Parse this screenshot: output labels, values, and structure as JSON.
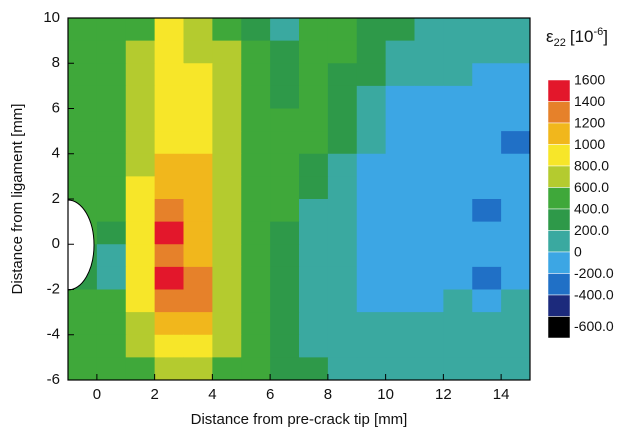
{
  "chart_data": {
    "type": "contour",
    "xlabel": "Distance from pre-crack tip [mm]",
    "ylabel": "Distance from ligament [mm]",
    "xlim": [
      -1,
      15
    ],
    "ylim": [
      -6,
      10
    ],
    "xticks": [
      0,
      2,
      4,
      6,
      8,
      10,
      12,
      14
    ],
    "yticks": [
      -6,
      -4,
      -2,
      0,
      2,
      4,
      6,
      8,
      10
    ],
    "x": [
      -0.5,
      0.5,
      1.5,
      2.5,
      3.5,
      4.5,
      5.5,
      6.5,
      7.5,
      8.5,
      9.5,
      10.5,
      11.5,
      12.5,
      13.5,
      14.5
    ],
    "y": [
      9.5,
      8.5,
      7.5,
      6.5,
      5.5,
      4.5,
      3.5,
      2.5,
      1.5,
      0.5,
      -0.5,
      -1.5,
      -2.5,
      -3.5,
      -4.5,
      -5.5
    ],
    "z": [
      [
        500,
        500,
        600,
        900,
        700,
        600,
        400,
        200,
        500,
        500,
        400,
        300,
        100,
        100,
        100,
        100
      ],
      [
        500,
        500,
        700,
        900,
        800,
        700,
        500,
        300,
        500,
        500,
        400,
        200,
        100,
        100,
        100,
        100
      ],
      [
        500,
        500,
        700,
        1000,
        900,
        700,
        500,
        300,
        500,
        400,
        300,
        100,
        100,
        100,
        -100,
        -100
      ],
      [
        500,
        500,
        700,
        1000,
        900,
        700,
        500,
        400,
        500,
        400,
        200,
        -100,
        -100,
        -100,
        -100,
        -100
      ],
      [
        500,
        500,
        700,
        900,
        900,
        700,
        500,
        500,
        500,
        400,
        100,
        -100,
        -100,
        -100,
        -100,
        -100
      ],
      [
        500,
        500,
        700,
        900,
        900,
        700,
        500,
        500,
        500,
        300,
        100,
        -100,
        -100,
        -100,
        -100,
        -300
      ],
      [
        500,
        500,
        800,
        1100,
        1100,
        800,
        500,
        500,
        400,
        200,
        -100,
        -100,
        -100,
        -100,
        -100,
        -100
      ],
      [
        500,
        500,
        900,
        1200,
        1100,
        800,
        500,
        500,
        300,
        100,
        -100,
        -100,
        -100,
        -100,
        -100,
        -100
      ],
      [
        500,
        500,
        900,
        1300,
        1100,
        800,
        500,
        500,
        200,
        100,
        -100,
        -100,
        -100,
        -100,
        -300,
        -100
      ],
      [
        500,
        300,
        900,
        1500,
        1200,
        800,
        500,
        400,
        100,
        100,
        -100,
        -100,
        -100,
        -100,
        -100,
        -100
      ],
      [
        300,
        100,
        900,
        1300,
        1200,
        800,
        500,
        400,
        100,
        100,
        -100,
        -100,
        -100,
        -100,
        -100,
        -100
      ],
      [
        300,
        100,
        900,
        1500,
        1300,
        800,
        500,
        300,
        100,
        100,
        -100,
        -100,
        -100,
        -100,
        -300,
        -100
      ],
      [
        500,
        500,
        900,
        1300,
        1300,
        800,
        500,
        300,
        100,
        100,
        -100,
        -100,
        -100,
        100,
        -100,
        100
      ],
      [
        500,
        500,
        800,
        1100,
        1100,
        700,
        500,
        300,
        100,
        100,
        100,
        100,
        100,
        100,
        100,
        100
      ],
      [
        500,
        500,
        700,
        900,
        900,
        700,
        500,
        400,
        100,
        100,
        100,
        100,
        100,
        100,
        100,
        100
      ],
      [
        500,
        500,
        600,
        700,
        700,
        600,
        500,
        400,
        300,
        100,
        100,
        100,
        100,
        100,
        100,
        100
      ]
    ],
    "colorbar_title": {
      "symbol": "ε",
      "subscript": "22",
      "unit_open": "[10",
      "superscript": "-6",
      "unit_close": "]"
    },
    "levels": [
      1600,
      1400,
      1200,
      1000,
      {
        "value": 800,
        "label": "800.0"
      },
      {
        "value": 600,
        "label": "600.0"
      },
      {
        "value": 400,
        "label": "400.0"
      },
      {
        "value": 200,
        "label": "200.0"
      },
      0,
      {
        "value": -200,
        "label": "-200.0"
      },
      {
        "value": -400,
        "label": "-400.0"
      },
      {
        "value": -600,
        "label": "-600.0"
      }
    ],
    "colors": [
      "#e3172b",
      "#e6812a",
      "#f1b71c",
      "#f7e629",
      "#b4cb2f",
      "#3fa83a",
      "#2e9949",
      "#3aa9a0",
      "#3ca6e4",
      "#2070c6",
      "#1c2a7c",
      "#000000"
    ]
  }
}
